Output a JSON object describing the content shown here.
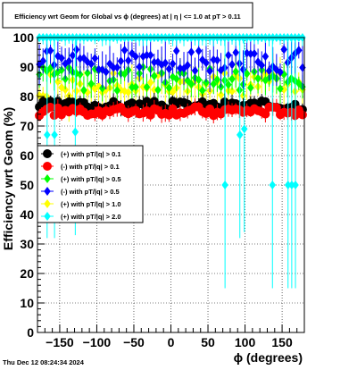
{
  "chart_data": {
    "type": "scatter",
    "title": "Efficiency wrt Geom for Global vs ϕ (degrees) at |  η  | <= 1.0 at pT > 0.11",
    "xlabel": "ϕ (degrees)",
    "ylabel": "Efficiency wrt Geom (%)",
    "timestamp": "Thu Dec 12 08:24:34 2024",
    "xlim": [
      -180,
      180
    ],
    "ylim": [
      0,
      100
    ],
    "x_ticks": [
      -150,
      -100,
      -50,
      0,
      50,
      100,
      150
    ],
    "x_tick_labels": [
      "−150",
      "−100",
      "−50",
      "0",
      "50",
      "100",
      "150"
    ],
    "y_ticks": [
      0,
      10,
      20,
      30,
      40,
      50,
      60,
      70,
      80,
      90,
      100
    ],
    "y_tick_labels": [
      "0",
      "10",
      "20",
      "30",
      "40",
      "50",
      "60",
      "70",
      "80",
      "90",
      "100"
    ],
    "grid": true,
    "grid_style": "dotted",
    "legend_position": "left",
    "series": [
      {
        "name": "(+) with pT/|q| > 0.1",
        "color": "#000000",
        "marker": "circle",
        "center": 77,
        "amp": 1.5,
        "err": 2
      },
      {
        "name": "(-) with pT/|q| > 0.1",
        "color": "#ff0000",
        "marker": "circle",
        "center": 75,
        "amp": 1.5,
        "err": 2
      },
      {
        "name": "(+) with pT/|q| > 0.5",
        "color": "#00ff00",
        "marker": "diamond",
        "center": 86,
        "amp": 4,
        "err": 4
      },
      {
        "name": "(-) with pT/|q| > 0.5",
        "color": "#0000ff",
        "marker": "diamond",
        "center": 92,
        "amp": 4,
        "err": 5
      },
      {
        "name": "(+) with pT/|q| > 1.0",
        "color": "#ffff00",
        "marker": "diamond",
        "center": 84,
        "amp": 4,
        "err": 6
      },
      {
        "name": "(+) with pT/|q| > 2.0",
        "color": "#00ffff",
        "marker": "diamond",
        "center": 100,
        "amp": 0,
        "err": 2,
        "outliers": [
          {
            "x": -167,
            "y": 67
          },
          {
            "x": -157,
            "y": 67
          },
          {
            "x": -129,
            "y": 68
          },
          {
            "x": 73,
            "y": 50
          },
          {
            "x": 93,
            "y": 67
          },
          {
            "x": 99,
            "y": 69
          },
          {
            "x": 137,
            "y": 50
          },
          {
            "x": 158,
            "y": 50
          },
          {
            "x": 163,
            "y": 50
          },
          {
            "x": 168,
            "y": 50
          }
        ]
      }
    ]
  }
}
